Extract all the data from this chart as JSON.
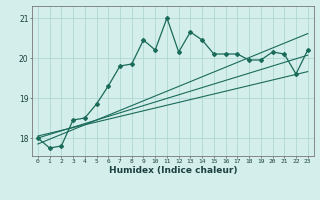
{
  "xlabel": "Humidex (Indice chaleur)",
  "bg_color": "#d4eeeb",
  "grid_color": "#b0d8d4",
  "line_color": "#1a6b5a",
  "x_values": [
    0,
    1,
    2,
    3,
    4,
    5,
    6,
    7,
    8,
    9,
    10,
    11,
    12,
    13,
    14,
    15,
    16,
    17,
    18,
    19,
    20,
    21,
    22,
    23
  ],
  "y_data": [
    18.0,
    17.75,
    17.8,
    18.45,
    18.5,
    18.85,
    19.3,
    19.8,
    19.85,
    20.45,
    20.2,
    21.0,
    20.15,
    20.65,
    20.45,
    20.1,
    20.1,
    20.1,
    19.95,
    19.95,
    20.15,
    20.1,
    19.6,
    20.2
  ],
  "y_line1": [
    18.05,
    18.12,
    18.19,
    18.26,
    18.33,
    18.4,
    18.47,
    18.54,
    18.61,
    18.68,
    18.75,
    18.82,
    18.89,
    18.96,
    19.03,
    19.1,
    19.17,
    19.24,
    19.31,
    19.38,
    19.45,
    19.52,
    19.59,
    19.66
  ],
  "y_line2": [
    18.0,
    18.09,
    18.18,
    18.27,
    18.36,
    18.45,
    18.54,
    18.63,
    18.72,
    18.81,
    18.9,
    18.99,
    19.08,
    19.17,
    19.26,
    19.35,
    19.44,
    19.53,
    19.62,
    19.71,
    19.8,
    19.89,
    19.98,
    20.07
  ],
  "y_line3": [
    17.85,
    17.97,
    18.09,
    18.21,
    18.33,
    18.45,
    18.57,
    18.69,
    18.81,
    18.93,
    19.05,
    19.17,
    19.29,
    19.41,
    19.53,
    19.65,
    19.77,
    19.89,
    20.01,
    20.13,
    20.25,
    20.37,
    20.49,
    20.61
  ],
  "ylim": [
    17.55,
    21.3
  ],
  "yticks": [
    18,
    19,
    20,
    21
  ],
  "xlim": [
    -0.5,
    23.5
  ],
  "figwidth": 3.2,
  "figheight": 2.0,
  "dpi": 100
}
